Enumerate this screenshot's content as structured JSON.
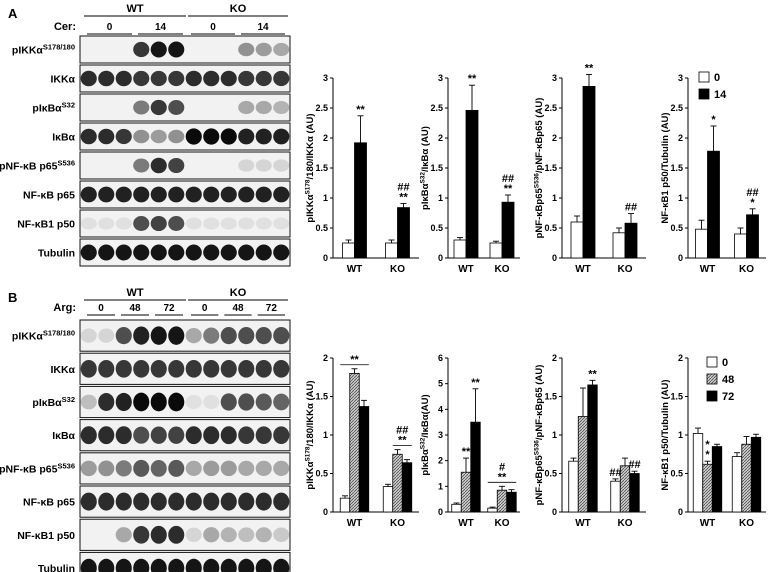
{
  "panel_a": {
    "letter": "A",
    "treatment_label": "Cer:",
    "groups": [
      {
        "name": "WT",
        "doses": [
          "0",
          "14"
        ]
      },
      {
        "name": "KO",
        "doses": [
          "0",
          "14"
        ]
      }
    ],
    "blot_labels": [
      {
        "base": "pIKKα",
        "sup": "S178/180"
      },
      {
        "base": "IKKα",
        "sup": ""
      },
      {
        "base": "pIκBα",
        "sup": "S32"
      },
      {
        "base": "IκBα",
        "sup": ""
      },
      {
        "base": "pNF-κB p65",
        "sup": "S536"
      },
      {
        "base": "NF-κB p65",
        "sup": ""
      },
      {
        "base": "NF-κB1 p50",
        "sup": ""
      },
      {
        "base": "Tubulin",
        "sup": ""
      }
    ]
  },
  "panel_b": {
    "letter": "B",
    "treatment_label": "Arg:",
    "groups": [
      {
        "name": "WT",
        "doses": [
          "0",
          "48",
          "72"
        ]
      },
      {
        "name": "KO",
        "doses": [
          "0",
          "48",
          "72"
        ]
      }
    ],
    "blot_labels": [
      {
        "base": "pIKKα",
        "sup": "S178/180"
      },
      {
        "base": "IKKα",
        "sup": ""
      },
      {
        "base": "pIκBα",
        "sup": "S32"
      },
      {
        "base": "IκBα",
        "sup": ""
      },
      {
        "base": "pNF-κB p65",
        "sup": "S536"
      },
      {
        "base": "NF-κB p65",
        "sup": ""
      },
      {
        "base": "NF-κB1 p50",
        "sup": ""
      },
      {
        "base": "Tubulin",
        "sup": ""
      }
    ]
  },
  "legend_a": [
    "0",
    "14"
  ],
  "legend_b": [
    "0",
    "48",
    "72"
  ],
  "chart_data": [
    {
      "type": "bar",
      "panel": "A",
      "ylabel": "pIKKα^S178/180/IKKα (AU)",
      "categories": [
        "WT",
        "KO"
      ],
      "ylim": [
        0,
        3
      ],
      "yticks": [
        0,
        0.5,
        1,
        1.5,
        2,
        2.5,
        3
      ],
      "series": [
        {
          "name": "0",
          "values": [
            0.25,
            0.25
          ],
          "errors": [
            0.05,
            0.05
          ]
        },
        {
          "name": "14",
          "values": [
            1.92,
            0.84
          ],
          "errors": [
            0.45,
            0.07
          ]
        }
      ],
      "annotations": [
        {
          "series": 1,
          "cat": 0,
          "text": "**"
        },
        {
          "series": 1,
          "cat": 1,
          "text": "**"
        },
        {
          "series": 1,
          "cat": 1,
          "text": "##"
        }
      ]
    },
    {
      "type": "bar",
      "panel": "A",
      "ylabel": "pIκBα^S32/IκBα (AU)",
      "categories": [
        "WT",
        "KO"
      ],
      "ylim": [
        0,
        3
      ],
      "yticks": [
        0,
        0.5,
        1,
        1.5,
        2,
        2.5,
        3
      ],
      "series": [
        {
          "name": "0",
          "values": [
            0.3,
            0.25
          ],
          "errors": [
            0.04,
            0.03
          ]
        },
        {
          "name": "14",
          "values": [
            2.46,
            0.93
          ],
          "errors": [
            0.42,
            0.12
          ]
        }
      ],
      "annotations": [
        {
          "series": 1,
          "cat": 0,
          "text": "**"
        },
        {
          "series": 1,
          "cat": 1,
          "text": "**"
        },
        {
          "series": 1,
          "cat": 1,
          "text": "##"
        }
      ]
    },
    {
      "type": "bar",
      "panel": "A",
      "ylabel": "pNF-κBp65^S536/pNF-κBp65 (AU)",
      "categories": [
        "WT",
        "KO"
      ],
      "ylim": [
        0,
        3
      ],
      "yticks": [
        0,
        0.5,
        1,
        1.5,
        2,
        2.5,
        3
      ],
      "series": [
        {
          "name": "0",
          "values": [
            0.6,
            0.42
          ],
          "errors": [
            0.1,
            0.08
          ]
        },
        {
          "name": "14",
          "values": [
            2.86,
            0.58
          ],
          "errors": [
            0.2,
            0.16
          ]
        }
      ],
      "annotations": [
        {
          "series": 1,
          "cat": 0,
          "text": "**"
        },
        {
          "series": 1,
          "cat": 1,
          "text": "##"
        }
      ]
    },
    {
      "type": "bar",
      "panel": "A",
      "ylabel": "NF-κB1 p50/Tubulin (AU)",
      "categories": [
        "WT",
        "KO"
      ],
      "ylim": [
        0,
        3
      ],
      "yticks": [
        0,
        0.5,
        1,
        1.5,
        2,
        2.5,
        3
      ],
      "series": [
        {
          "name": "0",
          "values": [
            0.48,
            0.4
          ],
          "errors": [
            0.15,
            0.1
          ]
        },
        {
          "name": "14",
          "values": [
            1.78,
            0.72
          ],
          "errors": [
            0.42,
            0.1
          ]
        }
      ],
      "annotations": [
        {
          "series": 1,
          "cat": 0,
          "text": "*"
        },
        {
          "series": 1,
          "cat": 1,
          "text": "*"
        },
        {
          "series": 1,
          "cat": 1,
          "text": "##"
        }
      ]
    },
    {
      "type": "bar",
      "panel": "B",
      "ylabel": "pIKKα^S178/180/IKKα (AU)",
      "categories": [
        "WT",
        "KO"
      ],
      "ylim": [
        0,
        2
      ],
      "yticks": [
        0,
        0.5,
        1,
        1.5,
        2
      ],
      "series": [
        {
          "name": "0",
          "values": [
            0.18,
            0.33
          ],
          "errors": [
            0.03,
            0.03
          ]
        },
        {
          "name": "48",
          "values": [
            1.8,
            0.75
          ],
          "errors": [
            0.06,
            0.06
          ]
        },
        {
          "name": "72",
          "values": [
            1.37,
            0.64
          ],
          "errors": [
            0.08,
            0.04
          ]
        }
      ],
      "annotations": [
        {
          "bracket": [
            0,
            2
          ],
          "cat": 0,
          "text": "**"
        },
        {
          "bracket": [
            1,
            2
          ],
          "cat": 1,
          "text": "**"
        },
        {
          "bracket": [
            1,
            2
          ],
          "cat": 1,
          "text": "##"
        }
      ]
    },
    {
      "type": "bar",
      "panel": "B",
      "ylabel": "pIκBα^S32/IκBα(AU)",
      "categories": [
        "WT",
        "KO"
      ],
      "ylim": [
        0,
        6
      ],
      "yticks": [
        0,
        1,
        2,
        3,
        4,
        5,
        6
      ],
      "series": [
        {
          "name": "0",
          "values": [
            0.3,
            0.15
          ],
          "errors": [
            0.05,
            0.04
          ]
        },
        {
          "name": "48",
          "values": [
            1.55,
            0.85
          ],
          "errors": [
            0.55,
            0.15
          ]
        },
        {
          "name": "72",
          "values": [
            3.5,
            0.77
          ],
          "errors": [
            1.3,
            0.1
          ]
        }
      ],
      "annotations": [
        {
          "series": 1,
          "cat": 0,
          "text": "**"
        },
        {
          "series": 2,
          "cat": 0,
          "text": "**"
        },
        {
          "bracket": [
            0,
            2
          ],
          "cat": 1,
          "text": "**"
        },
        {
          "bracket": [
            0,
            2
          ],
          "cat": 1,
          "text": "#"
        }
      ]
    },
    {
      "type": "bar",
      "panel": "B",
      "ylabel": "pNF-κBp65^S536/pNF-κBp65 (AU)",
      "categories": [
        "WT",
        "KO"
      ],
      "ylim": [
        0,
        2
      ],
      "yticks": [
        0,
        0.5,
        1,
        1.5,
        2
      ],
      "series": [
        {
          "name": "0",
          "values": [
            0.66,
            0.4
          ],
          "errors": [
            0.04,
            0.03
          ]
        },
        {
          "name": "48",
          "values": [
            1.24,
            0.6
          ],
          "errors": [
            0.37,
            0.1
          ]
        },
        {
          "name": "72",
          "values": [
            1.65,
            0.5
          ],
          "errors": [
            0.06,
            0.03
          ]
        }
      ],
      "annotations": [
        {
          "series": 2,
          "cat": 0,
          "text": "**"
        },
        {
          "series": 0,
          "cat": 1,
          "text": "##"
        },
        {
          "series": 2,
          "cat": 1,
          "text": "##"
        }
      ]
    },
    {
      "type": "bar",
      "panel": "B",
      "ylabel": "NF-κB1 p50/Tubulin (AU)",
      "categories": [
        "WT",
        "KO"
      ],
      "ylim": [
        0,
        2
      ],
      "yticks": [
        0,
        0.5,
        1,
        1.5,
        2
      ],
      "series": [
        {
          "name": "0",
          "values": [
            1.02,
            0.72
          ],
          "errors": [
            0.07,
            0.05
          ]
        },
        {
          "name": "48",
          "values": [
            0.62,
            0.88
          ],
          "errors": [
            0.04,
            0.1
          ]
        },
        {
          "name": "72",
          "values": [
            0.85,
            0.97
          ],
          "errors": [
            0.03,
            0.04
          ]
        }
      ],
      "annotations": [
        {
          "series": 1,
          "cat": 0,
          "text": "*"
        },
        {
          "series": 1,
          "cat": 0,
          "text": "*"
        }
      ]
    }
  ]
}
